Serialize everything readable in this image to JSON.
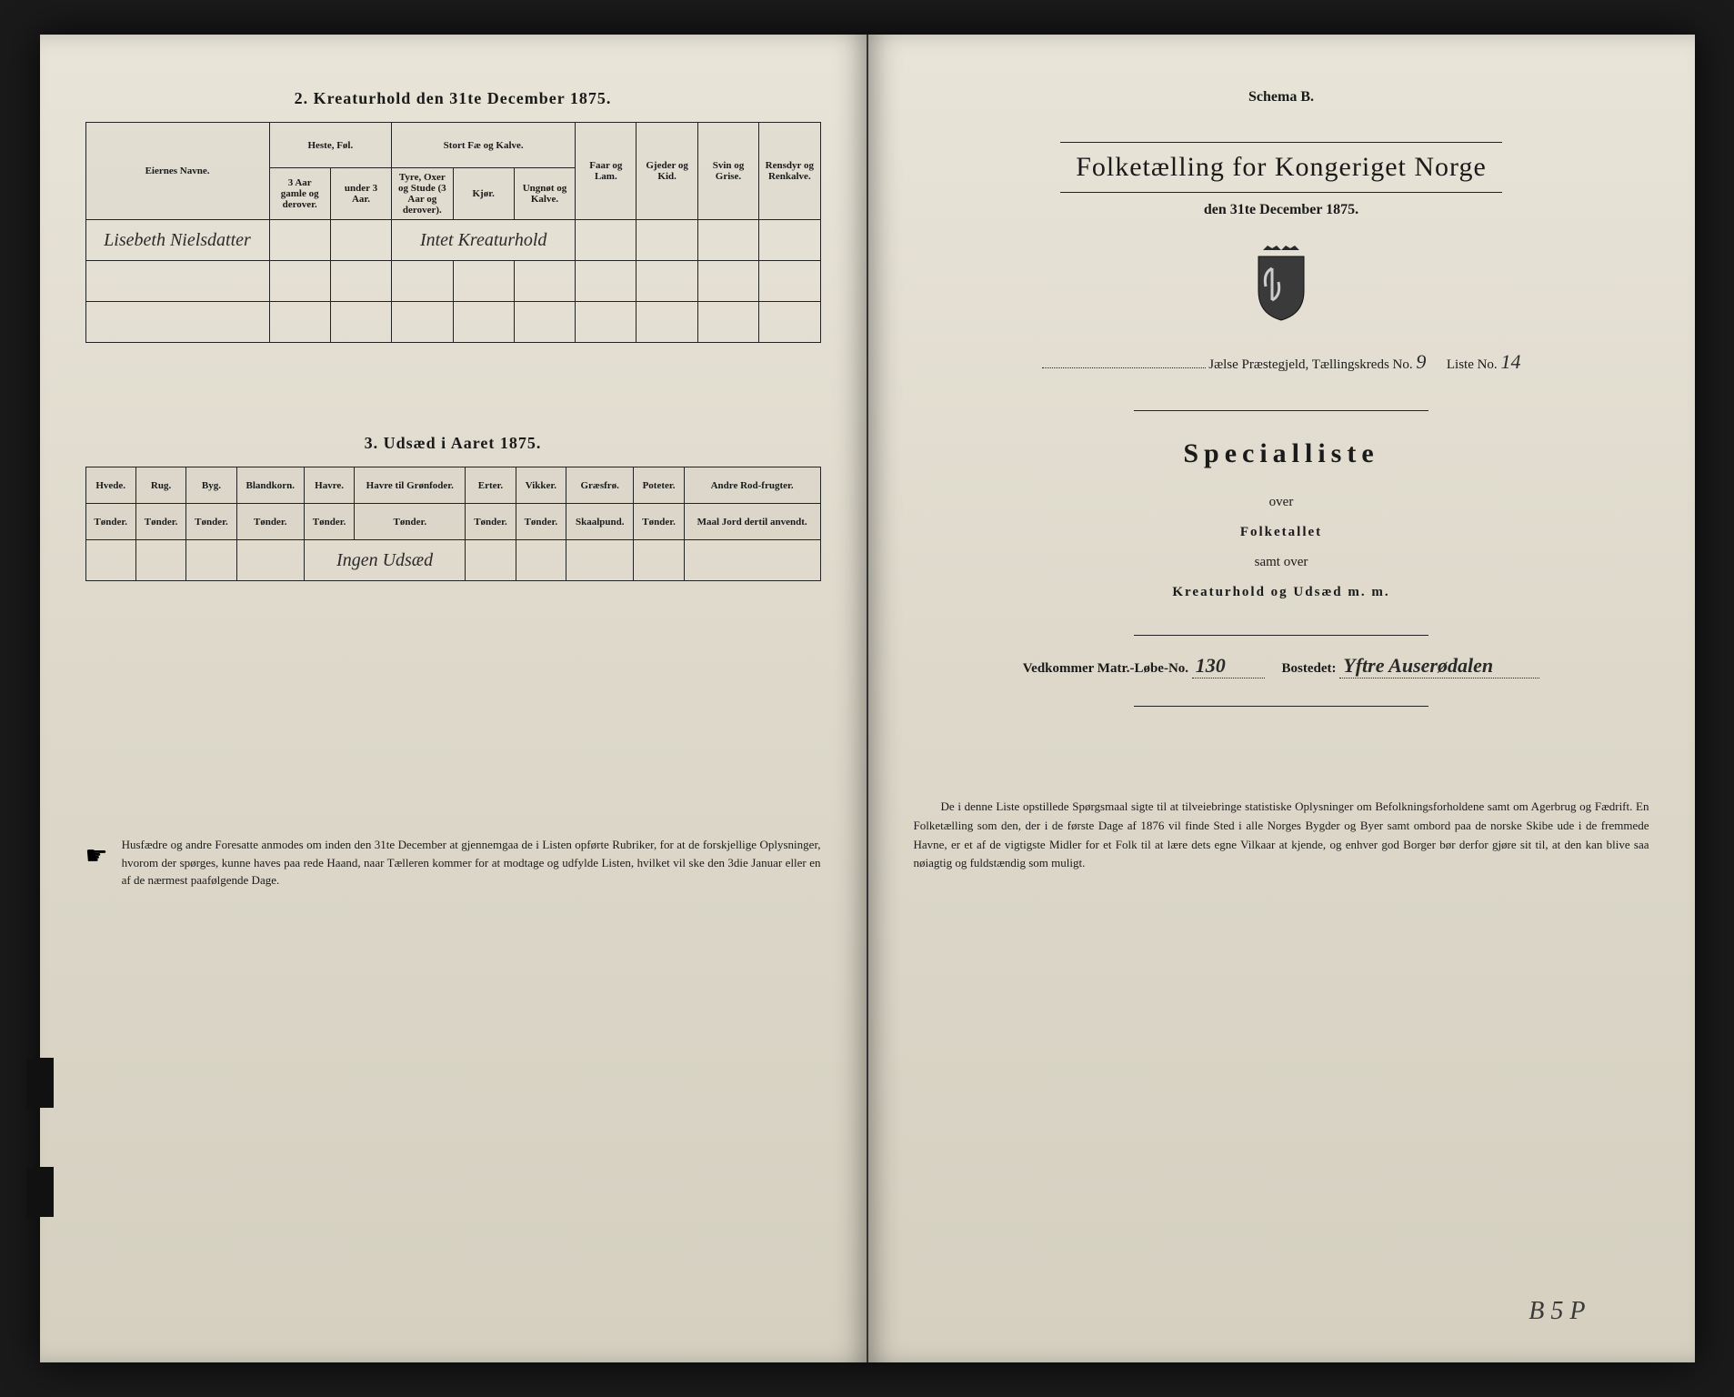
{
  "left": {
    "section2_title": "2. Kreaturhold den 31te December 1875.",
    "table1": {
      "headers": {
        "owner": "Eiernes Navne.",
        "horses_group": "Heste, Føl.",
        "horses_a": "3 Aar gamle og derover.",
        "horses_b": "under 3 Aar.",
        "cattle_group": "Stort Fæ og Kalve.",
        "cattle_a": "Tyre, Oxer og Stude (3 Aar og derover).",
        "cattle_b": "Kjør.",
        "cattle_c": "Ungnøt og Kalve.",
        "sheep": "Faar og Lam.",
        "goats": "Gjeder og Kid.",
        "pigs": "Svin og Grise.",
        "reindeer": "Rensdyr og Renkalve."
      },
      "row1_owner": "Lisebeth Nielsdatter",
      "row1_note": "Intet Kreaturhold"
    },
    "section3_title": "3. Udsæd i Aaret 1875.",
    "table2": {
      "headers": {
        "wheat": "Hvede.",
        "rye": "Rug.",
        "barley": "Byg.",
        "mixed": "Blandkorn.",
        "oats": "Havre.",
        "oats_green": "Havre til Grønfoder.",
        "peas": "Erter.",
        "vetch": "Vikker.",
        "grass": "Græsfrø.",
        "potato": "Poteter.",
        "other": "Andre Rod-frugter."
      },
      "sub": {
        "tonder": "Tønder.",
        "skaalpund": "Skaalpund.",
        "maal": "Maal Jord dertil anvendt."
      },
      "row1_note": "Ingen Udsæd"
    },
    "footer_note": "Husfædre og andre Foresatte anmodes om inden den 31te December at gjennemgaa de i Listen opførte Rubriker, for at de forskjellige Oplysninger, hvorom der spørges, kunne haves paa rede Haand, naar Tælleren kommer for at modtage og udfylde Listen, hvilket vil ske den 3die Januar eller en af de nærmest paafølgende Dage."
  },
  "right": {
    "schema": "Schema B.",
    "main_title": "Folketælling for Kongeriget Norge",
    "date_line": "den 31te December 1875.",
    "parish_label": "Jælse Præstegjeld, Tællingskreds No.",
    "parish_no": "9",
    "list_label": "Liste No.",
    "list_no": "14",
    "special_title": "Specialliste",
    "over": "over",
    "folketallet": "Folketallet",
    "samt_over": "samt over",
    "kreatur": "Kreaturhold og Udsæd m. m.",
    "matr_label": "Vedkommer Matr.-Løbe-No.",
    "matr_no": "130",
    "bosted_label": "Bostedet:",
    "bosted_val": "Yftre Auserødalen",
    "bottom_para": "De i denne Liste opstillede Spørgsmaal sigte til at tilveiebringe statistiske Oplysninger om Befolkningsforholdene samt om Agerbrug og Fædrift. En Folketælling som den, der i de første Dage af 1876 vil finde Sted i alle Norges Bygder og Byer samt ombord paa de norske Skibe ude i de fremmede Havne, er et af de vigtigste Midler for et Folk til at lære dets egne Vilkaar at kjende, og enhver god Borger bør derfor gjøre sit til, at den kan blive saa nøiagtig og fuldstændig som muligt.",
    "page_mark": "B 5 P"
  },
  "colors": {
    "ink": "#1a1a1a",
    "paper": "#e0dccf"
  }
}
